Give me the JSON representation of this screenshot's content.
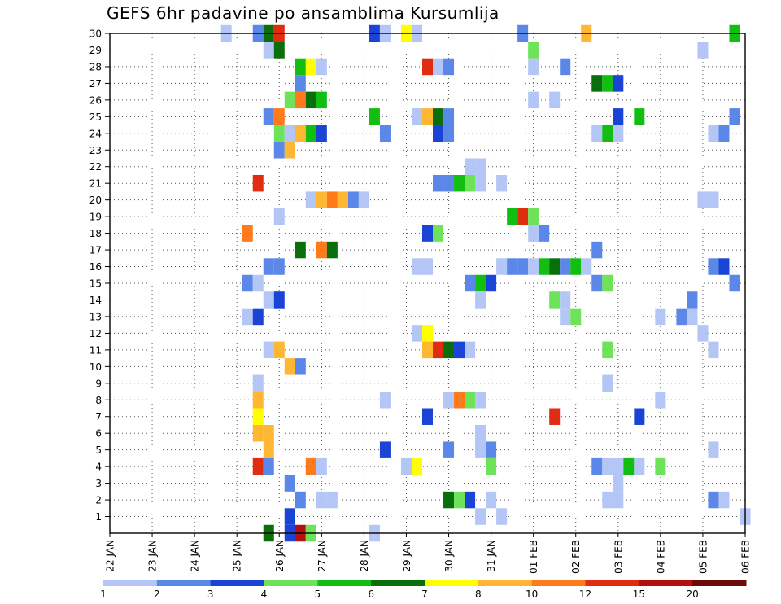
{
  "chart_data": {
    "type": "heatmap",
    "title": "GEFS 6hr padavine po ansamblima Kursumlija",
    "xlabel": "",
    "ylabel": "",
    "x_tick_labels": [
      "22 JAN",
      "23 JAN",
      "24 JAN",
      "25 JAN",
      "26 JAN",
      "27 JAN",
      "28 JAN",
      "29 JAN",
      "30 JAN",
      "31 JAN",
      "01 FEB",
      "02 FEB",
      "03 FEB",
      "04 FEB",
      "05 FEB",
      "06 FEB"
    ],
    "x_range_steps": [
      0,
      60
    ],
    "steps_per_day": 4,
    "y_tick_labels": [
      "1",
      "2",
      "3",
      "4",
      "5",
      "6",
      "7",
      "8",
      "9",
      "10",
      "11",
      "12",
      "13",
      "14",
      "15",
      "16",
      "17",
      "18",
      "19",
      "20",
      "21",
      "22",
      "23",
      "24",
      "25",
      "26",
      "27",
      "28",
      "29",
      "30"
    ],
    "y_range_members": [
      0,
      30
    ],
    "grid": "dotted",
    "colorbar": {
      "labels": [
        "1",
        "2",
        "3",
        "4",
        "5",
        "6",
        "7",
        "8",
        "10",
        "12",
        "15",
        "20"
      ],
      "colors": [
        "#b3c6f5",
        "#5a87e8",
        "#1a44d6",
        "#6ee35a",
        "#13be13",
        "#0a6e0a",
        "#ffff00",
        "#ffb733",
        "#ff7a1a",
        "#e02d12",
        "#b41010",
        "#6e0a0a"
      ]
    },
    "cells": [
      [
        30,
        11,
        0
      ],
      [
        30,
        14,
        1
      ],
      [
        30,
        15,
        5
      ],
      [
        30,
        16,
        9
      ],
      [
        30,
        25,
        2
      ],
      [
        30,
        26,
        0
      ],
      [
        30,
        28,
        6
      ],
      [
        30,
        29,
        0
      ],
      [
        30,
        39,
        1
      ],
      [
        30,
        45,
        7
      ],
      [
        30,
        59,
        4
      ],
      [
        29,
        15,
        0
      ],
      [
        29,
        16,
        5
      ],
      [
        29,
        40,
        3
      ],
      [
        29,
        56,
        0
      ],
      [
        28,
        18,
        4
      ],
      [
        28,
        19,
        6
      ],
      [
        28,
        20,
        0
      ],
      [
        28,
        30,
        9
      ],
      [
        28,
        31,
        0
      ],
      [
        28,
        32,
        1
      ],
      [
        28,
        40,
        0
      ],
      [
        28,
        43,
        1
      ],
      [
        27,
        18,
        1
      ],
      [
        27,
        46,
        5
      ],
      [
        27,
        47,
        4
      ],
      [
        27,
        48,
        2
      ],
      [
        26,
        17,
        3
      ],
      [
        26,
        18,
        8
      ],
      [
        26,
        19,
        5
      ],
      [
        26,
        20,
        4
      ],
      [
        26,
        40,
        0
      ],
      [
        26,
        42,
        0
      ],
      [
        25,
        15,
        1
      ],
      [
        25,
        16,
        8
      ],
      [
        25,
        25,
        4
      ],
      [
        25,
        29,
        0
      ],
      [
        25,
        30,
        7
      ],
      [
        25,
        31,
        5
      ],
      [
        25,
        32,
        1
      ],
      [
        25,
        48,
        2
      ],
      [
        25,
        50,
        4
      ],
      [
        25,
        59,
        1
      ],
      [
        24,
        16,
        3
      ],
      [
        24,
        17,
        0
      ],
      [
        24,
        18,
        7
      ],
      [
        24,
        19,
        4
      ],
      [
        24,
        20,
        2
      ],
      [
        24,
        26,
        1
      ],
      [
        24,
        31,
        2
      ],
      [
        24,
        32,
        1
      ],
      [
        24,
        46,
        0
      ],
      [
        24,
        47,
        4
      ],
      [
        24,
        48,
        0
      ],
      [
        24,
        57,
        0
      ],
      [
        24,
        58,
        1
      ],
      [
        23,
        16,
        1
      ],
      [
        23,
        17,
        7
      ],
      [
        22,
        34,
        0
      ],
      [
        22,
        35,
        0
      ],
      [
        21,
        14,
        9
      ],
      [
        21,
        31,
        1
      ],
      [
        21,
        32,
        1
      ],
      [
        21,
        33,
        4
      ],
      [
        21,
        34,
        3
      ],
      [
        21,
        35,
        0
      ],
      [
        21,
        37,
        0
      ],
      [
        20,
        19,
        0
      ],
      [
        20,
        20,
        7
      ],
      [
        20,
        21,
        8
      ],
      [
        20,
        22,
        7
      ],
      [
        20,
        23,
        1
      ],
      [
        20,
        24,
        0
      ],
      [
        20,
        56,
        0
      ],
      [
        20,
        57,
        0
      ],
      [
        19,
        16,
        0
      ],
      [
        19,
        38,
        4
      ],
      [
        19,
        39,
        9
      ],
      [
        19,
        40,
        3
      ],
      [
        18,
        13,
        8
      ],
      [
        18,
        30,
        2
      ],
      [
        18,
        31,
        3
      ],
      [
        18,
        40,
        0
      ],
      [
        18,
        41,
        1
      ],
      [
        17,
        18,
        5
      ],
      [
        17,
        20,
        8
      ],
      [
        17,
        21,
        5
      ],
      [
        17,
        46,
        1
      ],
      [
        16,
        15,
        1
      ],
      [
        16,
        16,
        1
      ],
      [
        16,
        29,
        0
      ],
      [
        16,
        30,
        0
      ],
      [
        16,
        37,
        0
      ],
      [
        16,
        38,
        1
      ],
      [
        16,
        39,
        1
      ],
      [
        16,
        40,
        0
      ],
      [
        16,
        41,
        4
      ],
      [
        16,
        42,
        5
      ],
      [
        16,
        43,
        1
      ],
      [
        16,
        44,
        4
      ],
      [
        16,
        45,
        0
      ],
      [
        16,
        57,
        1
      ],
      [
        16,
        58,
        2
      ],
      [
        15,
        13,
        1
      ],
      [
        15,
        14,
        0
      ],
      [
        15,
        34,
        1
      ],
      [
        15,
        35,
        4
      ],
      [
        15,
        36,
        2
      ],
      [
        15,
        46,
        1
      ],
      [
        15,
        47,
        3
      ],
      [
        15,
        59,
        1
      ],
      [
        14,
        15,
        0
      ],
      [
        14,
        16,
        2
      ],
      [
        14,
        35,
        0
      ],
      [
        14,
        42,
        3
      ],
      [
        14,
        43,
        0
      ],
      [
        14,
        55,
        1
      ],
      [
        13,
        13,
        0
      ],
      [
        13,
        14,
        2
      ],
      [
        13,
        43,
        0
      ],
      [
        13,
        44,
        3
      ],
      [
        13,
        52,
        0
      ],
      [
        13,
        54,
        1
      ],
      [
        13,
        55,
        0
      ],
      [
        12,
        29,
        0
      ],
      [
        12,
        30,
        6
      ],
      [
        12,
        56,
        0
      ],
      [
        11,
        15,
        0
      ],
      [
        11,
        16,
        7
      ],
      [
        11,
        30,
        7
      ],
      [
        11,
        31,
        9
      ],
      [
        11,
        32,
        5
      ],
      [
        11,
        33,
        2
      ],
      [
        11,
        34,
        0
      ],
      [
        11,
        47,
        3
      ],
      [
        11,
        57,
        0
      ],
      [
        10,
        17,
        7
      ],
      [
        10,
        18,
        1
      ],
      [
        9,
        14,
        0
      ],
      [
        9,
        47,
        0
      ],
      [
        8,
        14,
        7
      ],
      [
        8,
        26,
        0
      ],
      [
        8,
        32,
        0
      ],
      [
        8,
        33,
        8
      ],
      [
        8,
        34,
        3
      ],
      [
        8,
        35,
        0
      ],
      [
        8,
        52,
        0
      ],
      [
        7,
        14,
        6
      ],
      [
        7,
        30,
        2
      ],
      [
        7,
        42,
        9
      ],
      [
        7,
        50,
        2
      ],
      [
        6,
        14,
        7
      ],
      [
        6,
        15,
        7
      ],
      [
        6,
        35,
        0
      ],
      [
        5,
        15,
        7
      ],
      [
        5,
        26,
        2
      ],
      [
        5,
        32,
        1
      ],
      [
        5,
        35,
        0
      ],
      [
        5,
        36,
        1
      ],
      [
        5,
        57,
        0
      ],
      [
        4,
        14,
        9
      ],
      [
        4,
        15,
        1
      ],
      [
        4,
        19,
        8
      ],
      [
        4,
        20,
        0
      ],
      [
        4,
        28,
        0
      ],
      [
        4,
        29,
        6
      ],
      [
        4,
        36,
        3
      ],
      [
        4,
        46,
        1
      ],
      [
        4,
        47,
        0
      ],
      [
        4,
        48,
        0
      ],
      [
        4,
        49,
        4
      ],
      [
        4,
        50,
        0
      ],
      [
        4,
        52,
        3
      ],
      [
        3,
        17,
        1
      ],
      [
        3,
        48,
        0
      ],
      [
        2,
        18,
        1
      ],
      [
        2,
        20,
        0
      ],
      [
        2,
        21,
        0
      ],
      [
        2,
        32,
        5
      ],
      [
        2,
        33,
        3
      ],
      [
        2,
        34,
        2
      ],
      [
        2,
        36,
        0
      ],
      [
        2,
        47,
        0
      ],
      [
        2,
        48,
        0
      ],
      [
        2,
        57,
        1
      ],
      [
        2,
        58,
        0
      ],
      [
        1,
        17,
        2
      ],
      [
        1,
        35,
        0
      ],
      [
        1,
        37,
        0
      ],
      [
        1,
        60,
        0
      ],
      [
        0,
        15,
        5
      ],
      [
        0,
        17,
        2
      ],
      [
        0,
        18,
        10
      ],
      [
        0,
        19,
        3
      ],
      [
        0,
        25,
        0
      ]
    ]
  }
}
